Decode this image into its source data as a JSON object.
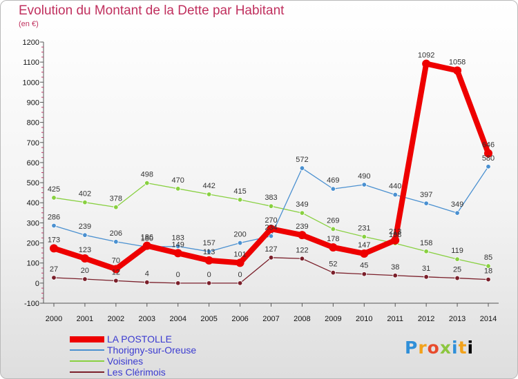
{
  "title": "Evolution du Montant de la Dette par Habitant",
  "subtitle": "(en €)",
  "logo": "Proxiti",
  "chart_data": {
    "type": "line",
    "title": "Evolution du Montant de la Dette par Habitant",
    "subtitle": "(en €)",
    "xlabel": "",
    "ylabel": "",
    "x": [
      "2000",
      "2001",
      "2002",
      "2003",
      "2004",
      "2005",
      "2006",
      "2007",
      "2008",
      "2009",
      "2010",
      "2011",
      "2012",
      "2013",
      "2014"
    ],
    "ylim": [
      -100,
      1200
    ],
    "yticks": [
      -100,
      0,
      100,
      200,
      300,
      400,
      500,
      600,
      700,
      800,
      900,
      1000,
      1100,
      1200
    ],
    "grid": false,
    "legend_position": "bottom-left",
    "series": [
      {
        "name": "LA POSTOLLE",
        "color": "#ee0000",
        "values": [
          173,
          123,
          70,
          186,
          149,
          113,
          101,
          270,
          239,
          178,
          147,
          213,
          1092,
          1058,
          646
        ]
      },
      {
        "name": "Thorigny-sur-Oreuse",
        "color": "#4a90d0",
        "values": [
          286,
          239,
          206,
          180,
          183,
          157,
          200,
          234,
          572,
          469,
          490,
          440,
          397,
          349,
          580
        ]
      },
      {
        "name": "Voisines",
        "color": "#88d040",
        "values": [
          425,
          402,
          378,
          498,
          470,
          442,
          415,
          383,
          349,
          269,
          231,
          198,
          158,
          119,
          85
        ]
      },
      {
        "name": "Les Clérimois",
        "color": "#7a1f2a",
        "values": [
          27,
          20,
          12,
          4,
          0,
          0,
          0,
          127,
          122,
          52,
          45,
          38,
          31,
          25,
          18
        ]
      }
    ],
    "data_labels": [
      [
        "173",
        "123",
        "70",
        "186",
        "149",
        "113",
        "101",
        "270",
        "239",
        "178",
        "147",
        "213",
        "1092",
        "1058",
        "646"
      ],
      [
        "286",
        "239",
        "206",
        "180",
        "183",
        "157",
        "200",
        "234",
        "572",
        "469",
        "490",
        "440",
        "397",
        "349",
        "580"
      ],
      [
        "425",
        "402",
        "378",
        "498",
        "470",
        "442",
        "415",
        "383",
        "349",
        "269",
        "231",
        "198",
        "158",
        "119",
        "85"
      ],
      [
        "27",
        "20",
        "12",
        "4",
        "0",
        "0",
        "0",
        "127",
        "122",
        "52",
        "45",
        "38",
        "31",
        "25",
        "18"
      ]
    ]
  }
}
